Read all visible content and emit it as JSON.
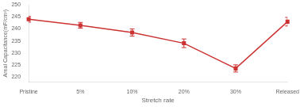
{
  "chart_data": {
    "type": "line",
    "categories": [
      "Pristine",
      "5%",
      "10%",
      "20%",
      "30%",
      "Released"
    ],
    "values": [
      244.0,
      241.5,
      238.5,
      234.0,
      223.5,
      243.0
    ],
    "errors": [
      1.2,
      1.2,
      1.5,
      1.8,
      1.5,
      1.8
    ],
    "xlabel": "Stretch rate",
    "ylabel": "Areal Capacitance(mF/cm²)",
    "ylim": [
      218,
      250
    ],
    "yticks": [
      220,
      225,
      230,
      235,
      240,
      245,
      250
    ],
    "color": "#cc3333",
    "marker": "square",
    "grid": false
  }
}
